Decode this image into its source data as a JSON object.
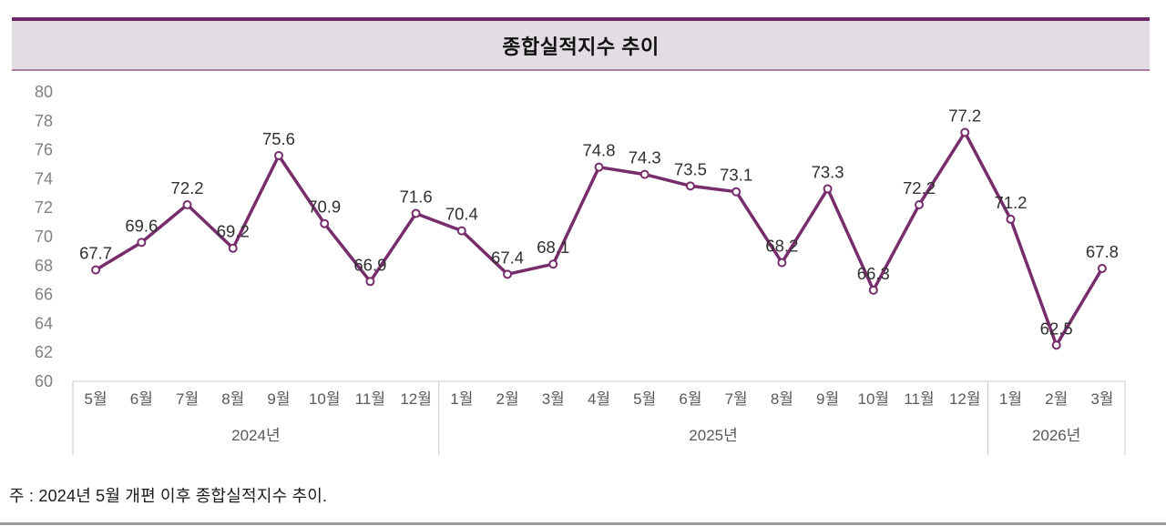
{
  "title": "종합실적지수 추이",
  "note": "주 : 2024년 5월 개편 이후 종합실적지수 추이.",
  "colors": {
    "line": "#772d6c",
    "marker_fill": "#ffffff",
    "title_top_border": "#6b2663",
    "title_bottom_border": "#a97ba3",
    "title_bg": "#e2dce3",
    "axis_border": "#c9c9c9",
    "tick_label": "#808080",
    "month_label": "#595959",
    "year_label": "#595959",
    "data_label": "#303030",
    "bottom_rule": "#9a9a9a"
  },
  "chart_data": {
    "type": "line",
    "title": "종합실적지수 추이",
    "series": [
      {
        "name": "종합실적지수",
        "values": [
          67.7,
          69.6,
          72.2,
          69.2,
          75.6,
          70.9,
          66.9,
          71.6,
          70.4,
          67.4,
          68.1,
          74.8,
          74.3,
          73.5,
          73.1,
          68.2,
          73.3,
          66.3,
          72.2,
          77.2,
          71.2,
          62.5,
          67.8
        ]
      }
    ],
    "year_groups": [
      {
        "label": "2024년",
        "months": [
          "5월",
          "6월",
          "7월",
          "8월",
          "9월",
          "10월",
          "11월",
          "12월"
        ]
      },
      {
        "label": "2025년",
        "months": [
          "1월",
          "2월",
          "3월",
          "4월",
          "5월",
          "6월",
          "7월",
          "8월",
          "9월",
          "10월",
          "11월",
          "12월"
        ]
      },
      {
        "label": "2026년",
        "months": [
          "1월",
          "2월",
          "3월"
        ]
      }
    ],
    "y_ticks": [
      80,
      78,
      76,
      74,
      72,
      70,
      68,
      66,
      64,
      62,
      60
    ],
    "ylim": [
      60,
      80
    ],
    "xlabel": "",
    "ylabel": "",
    "grid": false,
    "legend": false,
    "data_labels": true,
    "marker": "open-circle"
  }
}
